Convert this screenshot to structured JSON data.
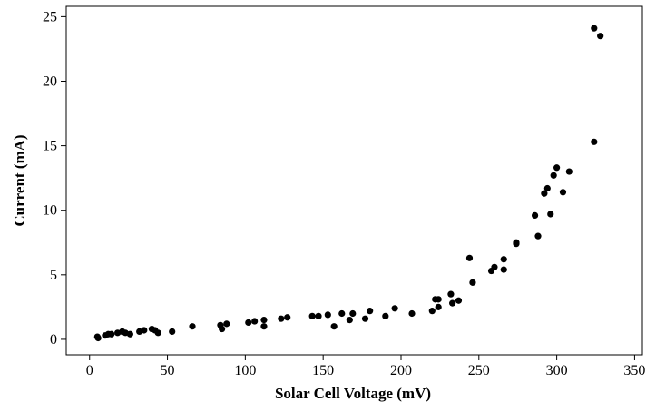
{
  "chart_data": {
    "type": "scatter",
    "title": "",
    "xlabel": "Solar Cell Voltage (mV)",
    "ylabel": "Current (mA)",
    "xlim": [
      -15,
      355
    ],
    "ylim": [
      -1.2,
      25.8
    ],
    "x_ticks": [
      0,
      50,
      100,
      150,
      200,
      250,
      300,
      350
    ],
    "y_ticks": [
      0,
      5,
      10,
      15,
      20,
      25
    ],
    "grid": false,
    "legend": "none",
    "marker_color": "#000000",
    "series": [
      {
        "points": [
          [
            5,
            0.2
          ],
          [
            5.5,
            0.1
          ],
          [
            10,
            0.3
          ],
          [
            12,
            0.4
          ],
          [
            14,
            0.4
          ],
          [
            18,
            0.5
          ],
          [
            21,
            0.6
          ],
          [
            23,
            0.5
          ],
          [
            26,
            0.4
          ],
          [
            32,
            0.6
          ],
          [
            35,
            0.7
          ],
          [
            40,
            0.8
          ],
          [
            42,
            0.7
          ],
          [
            44,
            0.5
          ],
          [
            53,
            0.6
          ],
          [
            66,
            1.0
          ],
          [
            84,
            1.1
          ],
          [
            85,
            0.8
          ],
          [
            88,
            1.2
          ],
          [
            102,
            1.3
          ],
          [
            106,
            1.4
          ],
          [
            112,
            1.5
          ],
          [
            112,
            1.0
          ],
          [
            123,
            1.6
          ],
          [
            127,
            1.7
          ],
          [
            143,
            1.8
          ],
          [
            147,
            1.8
          ],
          [
            153,
            1.9
          ],
          [
            157,
            1.0
          ],
          [
            162,
            2.0
          ],
          [
            167,
            1.5
          ],
          [
            169,
            2.0
          ],
          [
            177,
            1.6
          ],
          [
            180,
            2.2
          ],
          [
            190,
            1.8
          ],
          [
            196,
            2.4
          ],
          [
            207,
            2.0
          ],
          [
            220,
            2.2
          ],
          [
            222,
            3.1
          ],
          [
            224,
            3.1
          ],
          [
            224,
            2.5
          ],
          [
            232,
            3.5
          ],
          [
            233,
            2.8
          ],
          [
            237,
            3.0
          ],
          [
            244,
            6.3
          ],
          [
            246,
            4.4
          ],
          [
            258,
            5.3
          ],
          [
            260,
            5.6
          ],
          [
            266,
            6.2
          ],
          [
            266,
            5.4
          ],
          [
            274,
            7.5
          ],
          [
            274,
            7.4
          ],
          [
            286,
            9.6
          ],
          [
            288,
            8.0
          ],
          [
            292,
            11.3
          ],
          [
            294,
            11.7
          ],
          [
            296,
            9.7
          ],
          [
            298,
            12.7
          ],
          [
            300,
            13.3
          ],
          [
            304,
            11.4
          ],
          [
            308,
            13.0
          ],
          [
            324,
            24.1
          ],
          [
            324,
            15.3
          ],
          [
            328,
            23.5
          ]
        ]
      }
    ]
  }
}
